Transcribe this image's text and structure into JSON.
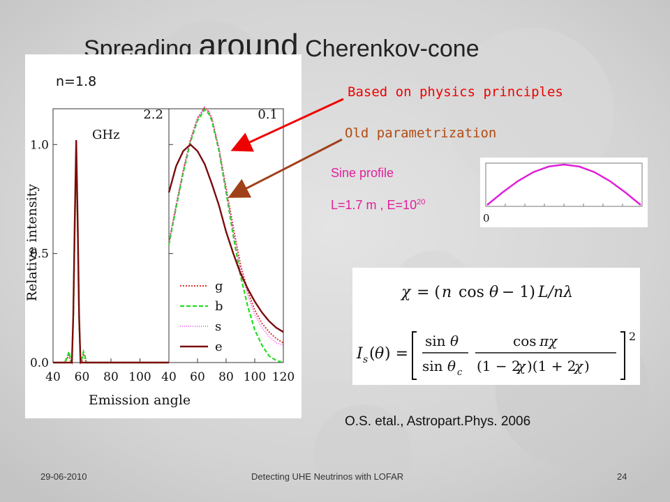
{
  "slide": {
    "title_part1": "Spreading",
    "title_part2": "around",
    "title_part3": "Cherenkov-cone",
    "n_label": "n=1.8",
    "callout_red": "Based on physics principles",
    "callout_brown": "Old parametrization",
    "sine_profile_label": "Sine profile",
    "L_label": "L=1.7 m , E=10",
    "L_exponent": "20",
    "reference": "O.S. etal., Astropart.Phys. 2006",
    "footer_date": "29-06-2010",
    "footer_center": "Detecting UHE Neutrinos with LOFAR",
    "footer_page": "24",
    "colors": {
      "red_callout": "#ee0000",
      "brown_callout": "#b34a12",
      "pink_text": "#e0209a",
      "sine_curve": "#e020d8"
    }
  },
  "chart_data": [
    {
      "type": "line",
      "panel": "left",
      "freq_label": "2.2",
      "unit_label": "GHz",
      "ylabel": "Relative intensity",
      "xlabel": "Emission angle",
      "xlim": [
        40,
        120
      ],
      "ylim": [
        0,
        1.1
      ],
      "xticks": [
        40,
        60,
        80,
        100
      ],
      "yticks": [
        0.0,
        0.5,
        1.0
      ],
      "ytick_labels": [
        "0.0",
        "0.5",
        "1.0"
      ],
      "series": [
        {
          "name": "g",
          "color": "#e03030",
          "dash": "2,2",
          "width": 2,
          "x": [
            40,
            48,
            50,
            51,
            52,
            53,
            54,
            55,
            56,
            57,
            58,
            59,
            60,
            61,
            62,
            63,
            64,
            65,
            70,
            80,
            100,
            120
          ],
          "y": [
            0,
            0,
            0.02,
            0.04,
            0.01,
            0.0,
            0.2,
            0.6,
            0.98,
            0.6,
            0.2,
            0.0,
            0.01,
            0.04,
            0.02,
            0.0,
            0,
            0,
            0,
            0,
            0,
            0
          ]
        },
        {
          "name": "b",
          "color": "#22dd22",
          "dash": "6,3",
          "width": 2.2,
          "x": [
            40,
            48,
            50,
            51,
            52,
            53,
            54,
            55,
            56,
            57,
            58,
            59,
            60,
            61,
            62,
            63,
            64,
            65,
            70,
            80,
            100,
            120
          ],
          "y": [
            0,
            0,
            0.03,
            0.05,
            0.02,
            0.0,
            0.2,
            0.6,
            0.98,
            0.6,
            0.2,
            0.0,
            0.02,
            0.05,
            0.03,
            0.0,
            0,
            0,
            0,
            0,
            0,
            0
          ]
        },
        {
          "name": "s",
          "color": "#e040e0",
          "dash": "1,2",
          "width": 1.5,
          "x": [
            40,
            53,
            54,
            55,
            56,
            57,
            58,
            59,
            120
          ],
          "y": [
            0,
            0.0,
            0.2,
            0.6,
            0.98,
            0.6,
            0.2,
            0.0,
            0
          ]
        },
        {
          "name": "e",
          "color": "#7a0c0c",
          "dash": "",
          "width": 2.4,
          "x": [
            40,
            53,
            54,
            55,
            56,
            57,
            58,
            59,
            120
          ],
          "y": [
            0,
            0.0,
            0.22,
            0.65,
            1.02,
            0.65,
            0.22,
            0.0,
            0
          ]
        }
      ]
    },
    {
      "type": "line",
      "panel": "right",
      "freq_label": "0.1",
      "xlim": [
        40,
        120
      ],
      "ylim": [
        0,
        1.1
      ],
      "xticks": [
        40,
        60,
        80,
        100,
        120
      ],
      "yticks": [
        0.0,
        0.5,
        1.0
      ],
      "legend": {
        "position": "bottom-left",
        "entries": [
          "g",
          "b",
          "s",
          "e"
        ]
      },
      "series": [
        {
          "name": "g",
          "color": "#e03030",
          "dash": "2,2",
          "width": 2,
          "x": [
            40,
            45,
            50,
            55,
            60,
            65,
            68,
            70,
            75,
            80,
            85,
            90,
            95,
            100,
            105,
            110,
            115,
            120
          ],
          "y": [
            0.55,
            0.72,
            0.88,
            1.02,
            1.12,
            1.17,
            1.15,
            1.12,
            0.98,
            0.8,
            0.62,
            0.45,
            0.33,
            0.24,
            0.18,
            0.14,
            0.11,
            0.09
          ]
        },
        {
          "name": "b",
          "color": "#22dd22",
          "dash": "6,3",
          "width": 2.2,
          "x": [
            40,
            45,
            50,
            55,
            60,
            65,
            68,
            70,
            75,
            80,
            85,
            90,
            95,
            100,
            105,
            110,
            115,
            120
          ],
          "y": [
            0.54,
            0.71,
            0.87,
            1.01,
            1.11,
            1.16,
            1.14,
            1.11,
            0.97,
            0.78,
            0.58,
            0.4,
            0.26,
            0.15,
            0.08,
            0.03,
            0.01,
            0.0
          ]
        },
        {
          "name": "s",
          "color": "#e040e0",
          "dash": "1,2",
          "width": 1.5,
          "x": [
            40,
            45,
            50,
            55,
            60,
            65,
            68,
            70,
            75,
            80,
            85,
            90,
            95,
            100,
            105,
            110,
            115,
            120
          ],
          "y": [
            0.55,
            0.72,
            0.88,
            1.02,
            1.12,
            1.17,
            1.15,
            1.12,
            0.98,
            0.79,
            0.6,
            0.43,
            0.31,
            0.22,
            0.16,
            0.12,
            0.09,
            0.08
          ]
        },
        {
          "name": "e",
          "color": "#7a0c0c",
          "dash": "",
          "width": 2.4,
          "x": [
            40,
            45,
            50,
            55,
            60,
            65,
            70,
            75,
            80,
            85,
            90,
            95,
            100,
            105,
            110,
            115,
            120
          ],
          "y": [
            0.78,
            0.9,
            0.97,
            1.0,
            0.97,
            0.91,
            0.82,
            0.72,
            0.6,
            0.5,
            0.41,
            0.34,
            0.28,
            0.23,
            0.19,
            0.16,
            0.14
          ]
        }
      ]
    },
    {
      "type": "line",
      "panel": "sine-inset",
      "xtick_label": "0",
      "series": [
        {
          "name": "sine",
          "color": "#e020d8",
          "x": [
            0,
            0.1,
            0.2,
            0.3,
            0.4,
            0.5,
            0.6,
            0.7,
            0.8,
            0.9,
            1.0
          ],
          "y": [
            0.0,
            0.31,
            0.59,
            0.81,
            0.95,
            1.0,
            0.95,
            0.81,
            0.59,
            0.31,
            0.0
          ]
        }
      ]
    }
  ]
}
